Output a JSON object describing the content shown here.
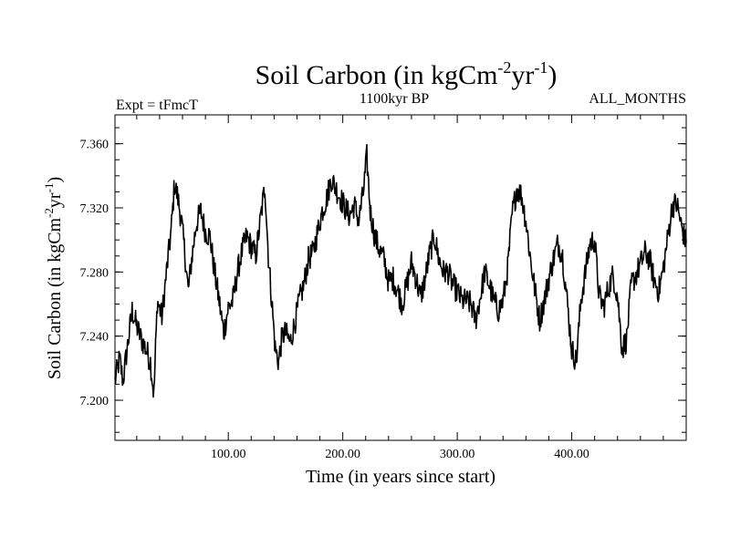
{
  "chart_data": {
    "type": "line",
    "title_main": "Soil Carbon (in kgCm",
    "title_sup1": "-2",
    "title_mid": "yr",
    "title_sup2": "-1",
    "title_end": ")",
    "left_label": "Expt = tFmcT",
    "center_label": "1100kyr BP",
    "right_label": "ALL_MONTHS",
    "xlabel": "Time (in years since start)",
    "ylabel_main": "Soil Carbon (in kgCm",
    "ylabel_sup1": "-2",
    "ylabel_mid": "yr",
    "ylabel_sup2": "-1",
    "ylabel_end": ")",
    "xlim": [
      1,
      500
    ],
    "ylim": [
      7.175,
      7.378
    ],
    "xticks": [
      {
        "value": 100,
        "label": "100.00"
      },
      {
        "value": 200,
        "label": "200.00"
      },
      {
        "value": 300,
        "label": "300.00"
      },
      {
        "value": 400,
        "label": "400.00"
      }
    ],
    "yticks": [
      {
        "value": 7.2,
        "label": "7.200"
      },
      {
        "value": 7.24,
        "label": "7.240"
      },
      {
        "value": 7.28,
        "label": "7.280"
      },
      {
        "value": 7.32,
        "label": "7.320"
      },
      {
        "value": 7.36,
        "label": "7.360"
      }
    ],
    "series": [
      {
        "name": "Soil Carbon",
        "x": [
          1,
          5,
          8,
          12,
          16,
          20,
          24,
          28,
          32,
          35,
          38,
          42,
          46,
          50,
          53,
          56,
          59,
          62,
          65,
          68,
          72,
          76,
          80,
          84,
          88,
          92,
          96,
          100,
          104,
          108,
          112,
          116,
          120,
          124,
          128,
          132,
          135,
          138,
          141,
          144,
          147,
          150,
          154,
          158,
          162,
          166,
          170,
          174,
          178,
          182,
          186,
          190,
          194,
          198,
          202,
          206,
          210,
          214,
          218,
          221,
          224,
          228,
          232,
          236,
          240,
          244,
          248,
          252,
          256,
          260,
          264,
          268,
          272,
          276,
          280,
          284,
          288,
          292,
          296,
          300,
          304,
          308,
          312,
          316,
          320,
          324,
          328,
          332,
          336,
          340,
          344,
          348,
          352,
          356,
          360,
          364,
          368,
          372,
          376,
          380,
          384,
          388,
          392,
          396,
          400,
          404,
          408,
          412,
          416,
          420,
          424,
          428,
          432,
          436,
          440,
          444,
          448,
          452,
          456,
          460,
          464,
          468,
          472,
          476,
          480,
          484,
          488,
          492,
          496,
          500
        ],
        "values": [
          7.212,
          7.226,
          7.212,
          7.234,
          7.256,
          7.246,
          7.238,
          7.232,
          7.224,
          7.203,
          7.262,
          7.252,
          7.28,
          7.305,
          7.335,
          7.326,
          7.312,
          7.292,
          7.268,
          7.288,
          7.31,
          7.318,
          7.305,
          7.302,
          7.28,
          7.262,
          7.242,
          7.258,
          7.262,
          7.28,
          7.293,
          7.302,
          7.296,
          7.29,
          7.312,
          7.334,
          7.29,
          7.262,
          7.232,
          7.224,
          7.24,
          7.242,
          7.236,
          7.248,
          7.262,
          7.272,
          7.288,
          7.292,
          7.305,
          7.318,
          7.326,
          7.338,
          7.332,
          7.326,
          7.32,
          7.315,
          7.322,
          7.312,
          7.33,
          7.352,
          7.318,
          7.302,
          7.294,
          7.288,
          7.274,
          7.276,
          7.268,
          7.26,
          7.272,
          7.286,
          7.276,
          7.264,
          7.276,
          7.292,
          7.302,
          7.288,
          7.28,
          7.28,
          7.272,
          7.268,
          7.262,
          7.262,
          7.26,
          7.25,
          7.264,
          7.28,
          7.272,
          7.262,
          7.256,
          7.262,
          7.282,
          7.316,
          7.332,
          7.328,
          7.312,
          7.288,
          7.268,
          7.25,
          7.262,
          7.276,
          7.288,
          7.298,
          7.29,
          7.262,
          7.232,
          7.224,
          7.262,
          7.28,
          7.298,
          7.3,
          7.265,
          7.258,
          7.27,
          7.278,
          7.265,
          7.232,
          7.238,
          7.272,
          7.278,
          7.285,
          7.292,
          7.288,
          7.275,
          7.268,
          7.282,
          7.302,
          7.322,
          7.322,
          7.308,
          7.298
        ]
      }
    ]
  }
}
